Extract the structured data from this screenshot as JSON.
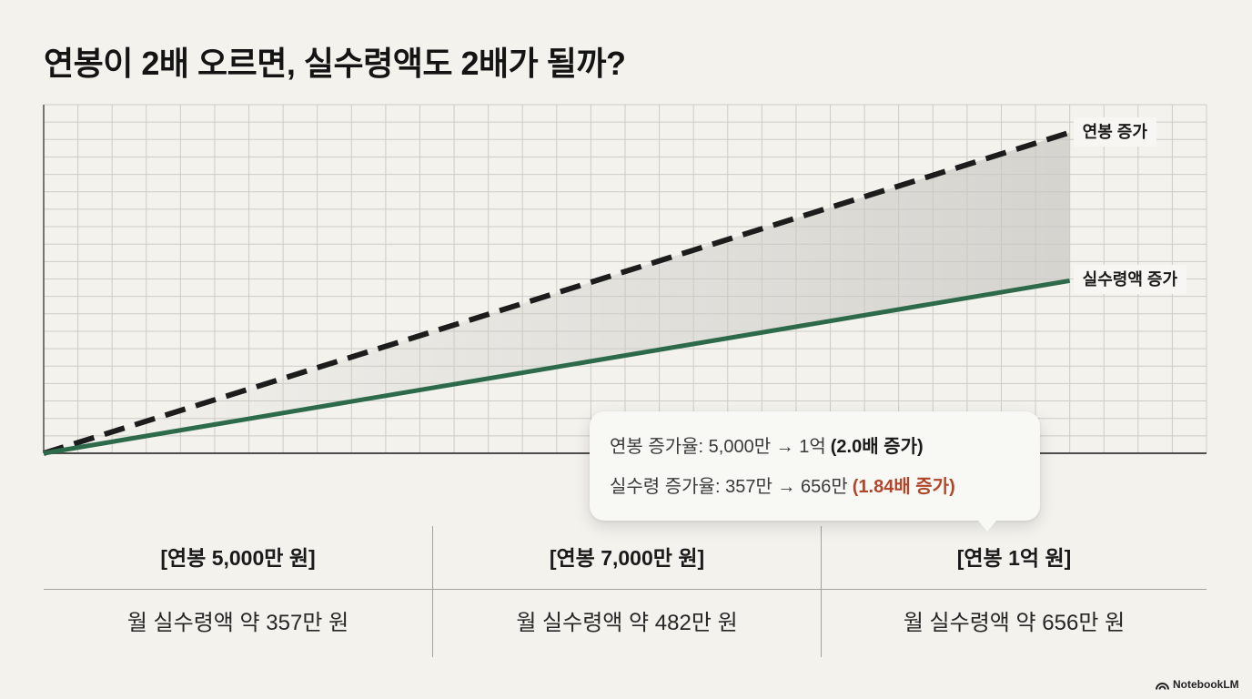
{
  "title": "연봉이 2배 오르면, 실수령액도 2배가 될까?",
  "chart_data": {
    "type": "line",
    "series": [
      {
        "name": "연봉 증가",
        "line_style": "dashed",
        "color": "#1c1c1c",
        "x": [
          0,
          30
        ],
        "y": [
          0,
          18.4
        ]
      },
      {
        "name": "실수령액 증가",
        "line_style": "solid",
        "color": "#2d6a4a",
        "x": [
          0,
          30
        ],
        "y": [
          0,
          9.9
        ]
      }
    ],
    "xlim": [
      0,
      34
    ],
    "ylim": [
      0,
      20
    ],
    "grid": true,
    "legend": "inline-right",
    "fill_between_series": true,
    "fill_color": "#c8c7c2"
  },
  "callout": {
    "rows": [
      {
        "text": "연봉 증가율: 5,000만 → 1억",
        "emphasis": "(2.0배 증가)",
        "emphasis_color": "#1a1a1a"
      },
      {
        "text": "실수령 증가율: 357만 → 656만",
        "emphasis": "(1.84배 증가)",
        "emphasis_color": "#b0472b"
      }
    ]
  },
  "table": {
    "columns": [
      {
        "header": "[연봉 5,000만 원]",
        "value": "월 실수령액 약 357만 원"
      },
      {
        "header": "[연봉 7,000만 원]",
        "value": "월 실수령액 약 482만 원"
      },
      {
        "header": "[연봉 1억 원]",
        "value": "월 실수령액 약 656만 원"
      }
    ]
  },
  "branding": {
    "name": "NotebookLM",
    "icon": "notebooklm-icon"
  },
  "colors": {
    "background": "#f3f2ed",
    "grid": "#cdccc7",
    "axis": "#4d4d4b"
  }
}
